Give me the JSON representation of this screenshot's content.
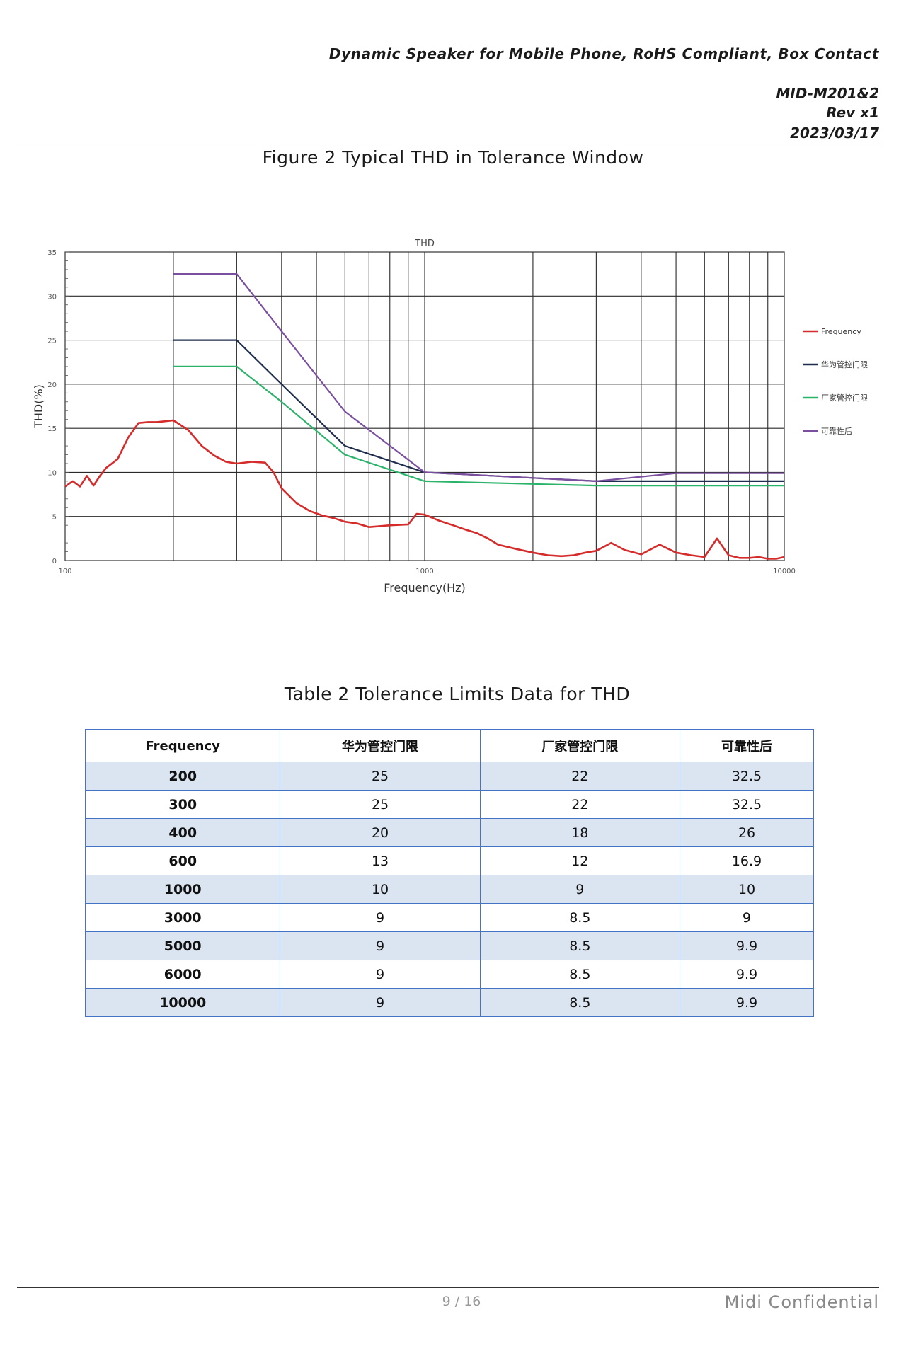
{
  "header": {
    "title": "Dynamic Speaker for Mobile Phone,  RoHS Compliant,  Box Contact",
    "doc_no": "MID-M201&2",
    "rev": "Rev x1",
    "date": "2023/03/17"
  },
  "figure_caption": "Figure 2  Typical THD in Tolerance Window",
  "table_caption": "Table 2  Tolerance Limits Data for THD",
  "chart_data": {
    "type": "line",
    "title": "THD",
    "xlabel": "Frequency(Hz)",
    "ylabel": "THD(%)",
    "x_scale": "log",
    "xlim": [
      100,
      10000
    ],
    "ylim": [
      0,
      35
    ],
    "x_ticks": [
      "100",
      "1000",
      "10000"
    ],
    "y_ticks": [
      "0",
      "5",
      "10",
      "15",
      "20",
      "25",
      "30",
      "35"
    ],
    "grid": true,
    "legend_position": "right",
    "series": [
      {
        "name": "Frequency",
        "color": "#d62b2b",
        "x": [
          100,
          105,
          110,
          115,
          120,
          125,
          130,
          140,
          150,
          160,
          170,
          180,
          200,
          220,
          240,
          260,
          280,
          300,
          330,
          360,
          380,
          400,
          440,
          480,
          520,
          560,
          600,
          650,
          700,
          750,
          800,
          900,
          950,
          1000,
          1100,
          1200,
          1300,
          1400,
          1500,
          1600,
          1800,
          2000,
          2200,
          2400,
          2600,
          2800,
          3000,
          3300,
          3600,
          4000,
          4500,
          5000,
          5500,
          6000,
          6500,
          7000,
          7500,
          8000,
          8500,
          9000,
          9500,
          10000
        ],
        "y": [
          8.4,
          9.0,
          8.4,
          9.6,
          8.5,
          9.6,
          10.5,
          11.5,
          14.0,
          15.6,
          15.7,
          15.7,
          15.9,
          14.8,
          13.0,
          11.9,
          11.2,
          11.0,
          11.2,
          11.1,
          10.0,
          8.2,
          6.5,
          5.6,
          5.1,
          4.8,
          4.4,
          4.2,
          3.8,
          3.9,
          4.0,
          4.1,
          5.3,
          5.2,
          4.5,
          4.0,
          3.5,
          3.1,
          2.5,
          1.8,
          1.3,
          0.9,
          0.6,
          0.5,
          0.6,
          0.9,
          1.1,
          2.0,
          1.2,
          0.7,
          1.8,
          0.9,
          0.6,
          0.4,
          2.5,
          0.6,
          0.3,
          0.3,
          0.4,
          0.2,
          0.2,
          0.4
        ]
      },
      {
        "name": "华为管控门限",
        "color": "#1f2d4e",
        "x": [
          200,
          300,
          400,
          600,
          1000,
          3000,
          5000,
          6000,
          10000
        ],
        "y": [
          25,
          25,
          20,
          13,
          10,
          9,
          9,
          9,
          9
        ]
      },
      {
        "name": "厂家管控门限",
        "color": "#2bb36a",
        "x": [
          200,
          300,
          400,
          600,
          1000,
          3000,
          5000,
          6000,
          10000
        ],
        "y": [
          22,
          22,
          18,
          12,
          9,
          8.5,
          8.5,
          8.5,
          8.5
        ]
      },
      {
        "name": "可靠性后",
        "color": "#7a4fa0",
        "x": [
          200,
          300,
          400,
          600,
          1000,
          3000,
          5000,
          6000,
          10000
        ],
        "y": [
          32.5,
          32.5,
          26,
          16.9,
          10,
          9,
          9.9,
          9.9,
          9.9
        ]
      }
    ]
  },
  "table": {
    "headers": [
      "Frequency",
      "华为管控门限",
      "厂家管控门限",
      "可靠性后"
    ],
    "rows": [
      [
        "200",
        "25",
        "22",
        "32.5"
      ],
      [
        "300",
        "25",
        "22",
        "32.5"
      ],
      [
        "400",
        "20",
        "18",
        "26"
      ],
      [
        "600",
        "13",
        "12",
        "16.9"
      ],
      [
        "1000",
        "10",
        "9",
        "10"
      ],
      [
        "3000",
        "9",
        "8.5",
        "9"
      ],
      [
        "5000",
        "9",
        "8.5",
        "9.9"
      ],
      [
        "6000",
        "9",
        "8.5",
        "9.9"
      ],
      [
        "10000",
        "9",
        "8.5",
        "9.9"
      ]
    ]
  },
  "footer": {
    "page": "9 / 16",
    "confidential": "Midi  Confidential"
  }
}
